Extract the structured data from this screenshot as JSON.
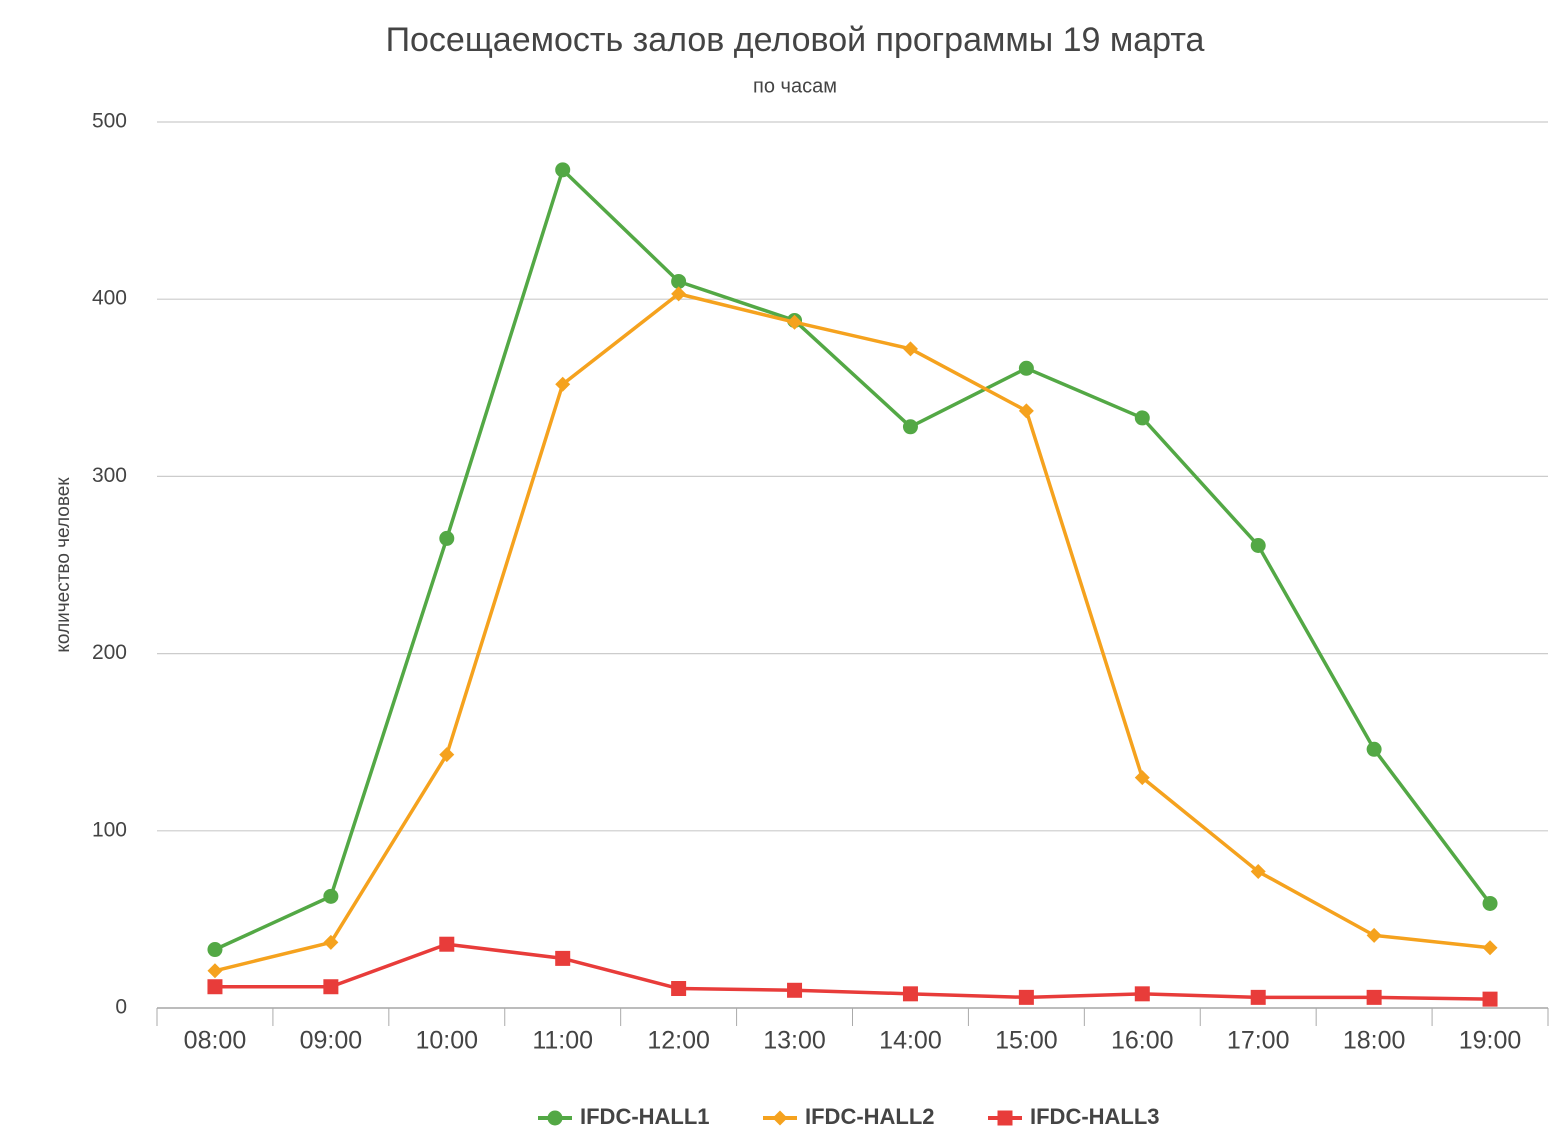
{
  "chart_data": {
    "type": "line",
    "title": "Посещаемость залов деловой программы 19 марта",
    "subtitle": "по часам",
    "y_label": "количество человек",
    "categories": [
      "08:00",
      "09:00",
      "10:00",
      "11:00",
      "12:00",
      "13:00",
      "14:00",
      "15:00",
      "16:00",
      "17:00",
      "18:00",
      "19:00"
    ],
    "series": [
      {
        "name": "IFDC-HALL1",
        "color": "#53a845",
        "marker": "circle",
        "values": [
          33,
          63,
          265,
          473,
          410,
          388,
          328,
          361,
          333,
          261,
          146,
          59
        ]
      },
      {
        "name": "IFDC-HALL2",
        "color": "#f5a21e",
        "marker": "diamond",
        "values": [
          21,
          37,
          143,
          352,
          403,
          387,
          372,
          337,
          130,
          77,
          41,
          34
        ]
      },
      {
        "name": "IFDC-HALL3",
        "color": "#e83c3a",
        "marker": "square",
        "values": [
          12,
          12,
          36,
          28,
          11,
          10,
          8,
          6,
          8,
          6,
          6,
          5
        ]
      }
    ],
    "ylim": [
      0,
      500
    ],
    "yticks": [
      0,
      100,
      200,
      300,
      400,
      500
    ],
    "grid": true,
    "legend": "bottom"
  }
}
